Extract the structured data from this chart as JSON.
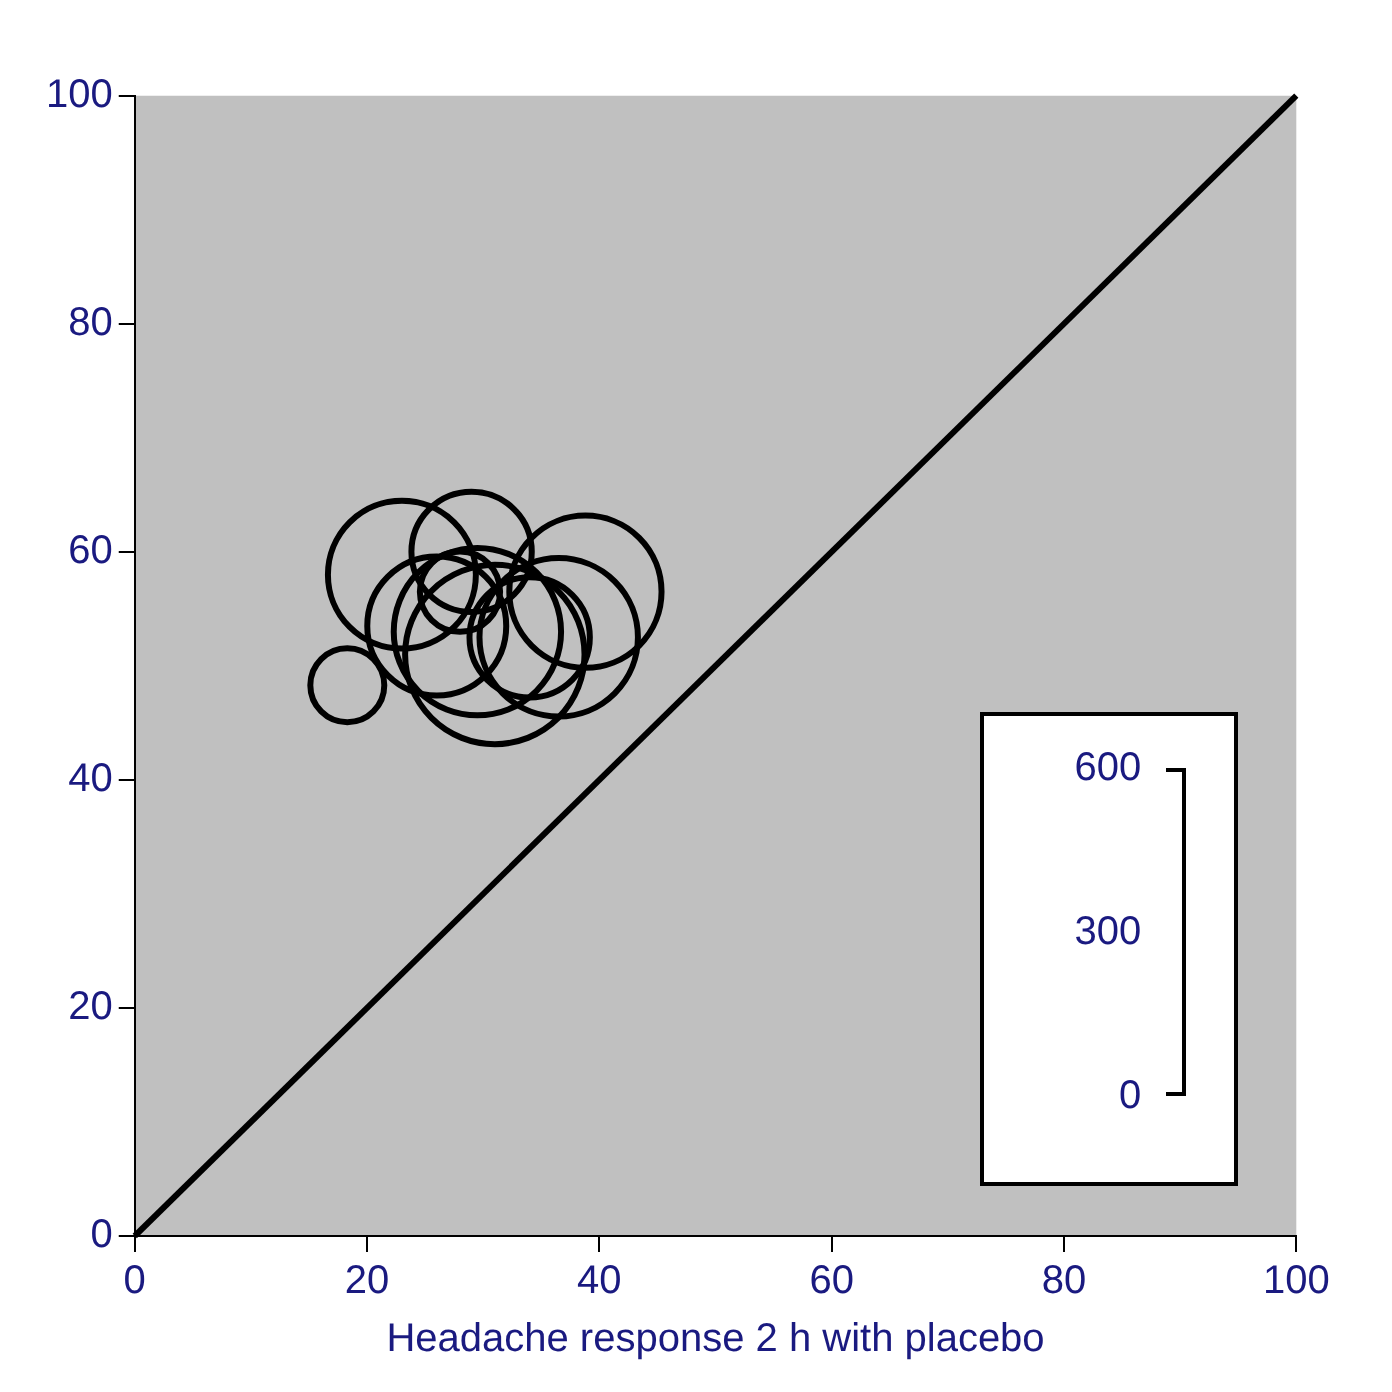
{
  "chart_data": {
    "type": "bubble",
    "xlabel": "Headache response 2 h with placebo",
    "xlim": [
      0,
      100
    ],
    "xticks": [
      0,
      20,
      40,
      60,
      80,
      100
    ],
    "ylim": [
      0,
      100
    ],
    "yticks": [
      0,
      20,
      40,
      60,
      80,
      100
    ],
    "grid": false,
    "legend": false,
    "annotations": [
      "600",
      "300",
      "0"
    ],
    "series": [
      {
        "type": "bubble",
        "color": "#000000",
        "x": [
          18.3,
          23,
          29,
          38.8,
          34,
          31,
          29.5,
          28,
          26,
          36.5
        ],
        "values": [
          48.3,
          58,
          60,
          56.5,
          52.5,
          51,
          53,
          56.5,
          53.5,
          52.5
        ],
        "sizes": [
          0.17,
          0.68,
          0.45,
          0.72,
          0.45,
          1,
          0.87,
          0.2,
          0.6,
          0.78
        ]
      },
      {
        "type": "line",
        "color": "#000000",
        "x": [
          0,
          100
        ],
        "values": [
          0,
          100
        ]
      }
    ]
  }
}
